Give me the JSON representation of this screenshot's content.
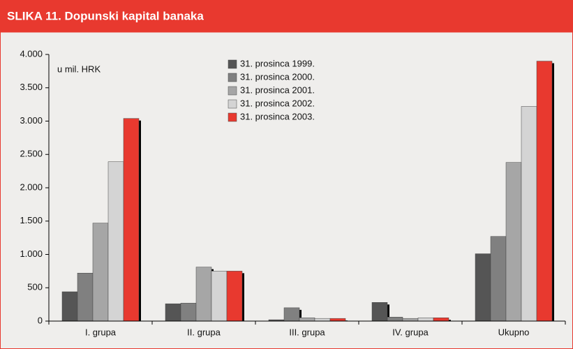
{
  "chart_data": {
    "type": "bar",
    "title": "SLIKA 11. Dopunski kapital banaka",
    "unit_label": "u mil. HRK",
    "categories": [
      "I. grupa",
      "II. grupa",
      "III. grupa",
      "IV. grupa",
      "Ukupno"
    ],
    "series": [
      {
        "name": "31. prosinca 1999.",
        "color": "#555555",
        "values": [
          440,
          260,
          20,
          280,
          1010
        ]
      },
      {
        "name": "31. prosinca 2000.",
        "color": "#808080",
        "values": [
          720,
          270,
          200,
          60,
          1270
        ]
      },
      {
        "name": "31. prosinca 2001.",
        "color": "#a6a6a6",
        "values": [
          1470,
          810,
          50,
          40,
          2380
        ]
      },
      {
        "name": "31. prosinca 2002.",
        "color": "#d4d4d4",
        "values": [
          2390,
          750,
          40,
          50,
          3220
        ]
      },
      {
        "name": "31. prosinca 2003.",
        "color": "#e8392f",
        "values": [
          3040,
          750,
          40,
          50,
          3900
        ]
      }
    ],
    "ylim": [
      0,
      4000
    ],
    "yticks": [
      0,
      {
        "value": 500,
        "label": "500"
      },
      {
        "value": 1000,
        "label": "1.000"
      },
      {
        "value": 1500,
        "label": "1.500"
      },
      {
        "value": 2000,
        "label": "2.000"
      },
      {
        "value": 2500,
        "label": "2.500"
      },
      {
        "value": 3000,
        "label": "3.000"
      },
      {
        "value": 3500,
        "label": "3.500"
      },
      {
        "value": 4000,
        "label": "4.000"
      }
    ],
    "grid": false,
    "legend": "top-center"
  }
}
